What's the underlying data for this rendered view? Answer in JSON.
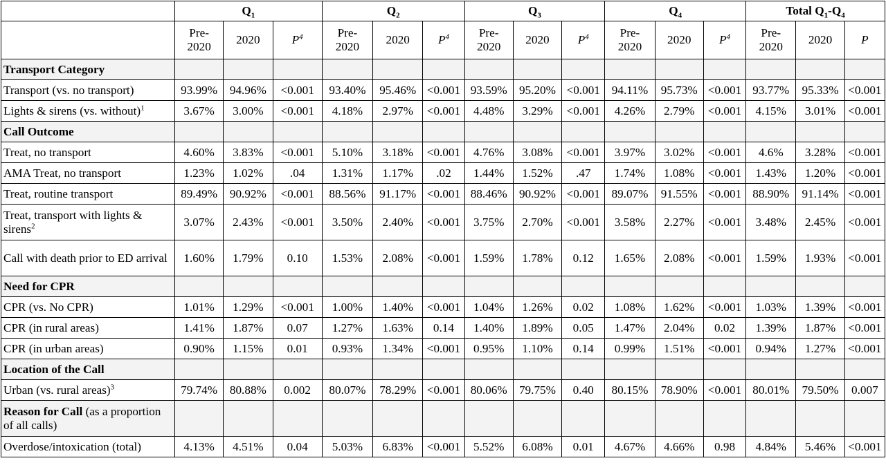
{
  "header": {
    "quarters": [
      {
        "label": "Q",
        "sub": "1"
      },
      {
        "label": "Q",
        "sub": "2"
      },
      {
        "label": "Q",
        "sub": "3"
      },
      {
        "label": "Q",
        "sub": "4"
      }
    ],
    "total": {
      "prefix": "Total Q",
      "sub1": "1",
      "mid": "-Q",
      "sub2": "4"
    },
    "pre_line1": "Pre-",
    "pre_line2": "2020",
    "col_2020": "2020",
    "p_label": "P",
    "p_sup": "4",
    "total_p_label": "P"
  },
  "rows": [
    {
      "type": "section",
      "label": "Transport Category"
    },
    {
      "type": "data",
      "label": "Transport (vs. no transport)",
      "values": [
        "93.99%",
        "94.96%",
        "<0.001",
        "93.40%",
        "95.46%",
        "<0.001",
        "93.59%",
        "95.20%",
        "<0.001",
        "94.11%",
        "95.73%",
        "<0.001",
        "93.77%",
        "95.33%",
        "<0.001"
      ]
    },
    {
      "type": "data",
      "label": "Lights & sirens (vs. without)",
      "sup": "1",
      "values": [
        "3.67%",
        "3.00%",
        "<0.001",
        "4.18%",
        "2.97%",
        "<0.001",
        "4.48%",
        "3.29%",
        "<0.001",
        "4.26%",
        "2.79%",
        "<0.001",
        "4.15%",
        "3.01%",
        "<0.001"
      ]
    },
    {
      "type": "section",
      "label": "Call Outcome"
    },
    {
      "type": "data",
      "label": "Treat, no transport",
      "values": [
        "4.60%",
        "3.83%",
        "<0.001",
        "5.10%",
        "3.18%",
        "<0.001",
        "4.76%",
        "3.08%",
        "<0.001",
        "3.97%",
        "3.02%",
        "<0.001",
        "4.6%",
        "3.28%",
        "<0.001"
      ]
    },
    {
      "type": "data",
      "label": "AMA Treat, no transport",
      "values": [
        "1.23%",
        "1.02%",
        ".04",
        "1.31%",
        "1.17%",
        ".02",
        "1.44%",
        "1.52%",
        ".47",
        "1.74%",
        "1.08%",
        "<0.001",
        "1.43%",
        "1.20%",
        "<0.001"
      ]
    },
    {
      "type": "data",
      "label": "Treat, routine transport",
      "values": [
        "89.49%",
        "90.92%",
        "<0.001",
        "88.56%",
        "91.17%",
        "<0.001",
        "88.46%",
        "90.92%",
        "<0.001",
        "89.07%",
        "91.55%",
        "<0.001",
        "88.90%",
        "91.14%",
        "<0.001"
      ]
    },
    {
      "type": "data",
      "label": "Treat, transport with lights & sirens",
      "sup": "2",
      "tall": true,
      "values": [
        "3.07%",
        "2.43%",
        "<0.001",
        "3.50%",
        "2.40%",
        "<0.001",
        "3.75%",
        "2.70%",
        "<0.001",
        "3.58%",
        "2.27%",
        "<0.001",
        "3.48%",
        "2.45%",
        "<0.001"
      ]
    },
    {
      "type": "data",
      "label": "Call with death prior to ED arrival",
      "tall": true,
      "values": [
        "1.60%",
        "1.79%",
        "0.10",
        "1.53%",
        "2.08%",
        "<0.001",
        "1.59%",
        "1.78%",
        "0.12",
        "1.65%",
        "2.08%",
        "<0.001",
        "1.59%",
        "1.93%",
        "<0.001"
      ]
    },
    {
      "type": "section",
      "label": "Need for CPR"
    },
    {
      "type": "data",
      "label": "CPR (vs. No CPR)",
      "values": [
        "1.01%",
        "1.29%",
        "<0.001",
        "1.00%",
        "1.40%",
        "<0.001",
        "1.04%",
        "1.26%",
        "0.02",
        "1.08%",
        "1.62%",
        "<0.001",
        "1.03%",
        "1.39%",
        "<0.001"
      ]
    },
    {
      "type": "data",
      "label": "CPR (in rural areas)",
      "values": [
        "1.41%",
        "1.87%",
        "0.07",
        "1.27%",
        "1.63%",
        "0.14",
        "1.40%",
        "1.89%",
        "0.05",
        "1.47%",
        "2.04%",
        "0.02",
        "1.39%",
        "1.87%",
        "<0.001"
      ]
    },
    {
      "type": "data",
      "label": "CPR (in urban areas)",
      "values": [
        "0.90%",
        "1.15%",
        "0.01",
        "0.93%",
        "1.34%",
        "<0.001",
        "0.95%",
        "1.10%",
        "0.14",
        "0.99%",
        "1.51%",
        "<0.001",
        "0.94%",
        "1.27%",
        "<0.001"
      ]
    },
    {
      "type": "section",
      "label": "Location of the Call"
    },
    {
      "type": "data",
      "label": "Urban (vs. rural areas)",
      "sup": "3",
      "values": [
        "79.74%",
        "80.88%",
        "0.002",
        "80.07%",
        "78.29%",
        "<0.001",
        "80.06%",
        "79.75%",
        "0.40",
        "80.15%",
        "78.90%",
        "<0.001",
        "80.01%",
        "79.50%",
        "0.007"
      ]
    },
    {
      "type": "section",
      "label": "Reason for Call",
      "note": " (as a proportion of all calls)",
      "tall3": true
    },
    {
      "type": "data",
      "label": "Overdose/intoxication (total)",
      "values": [
        "4.13%",
        "4.51%",
        "0.04",
        "5.03%",
        "6.83%",
        "<0.001",
        "5.52%",
        "6.08%",
        "0.01",
        "4.67%",
        "4.66%",
        "0.98",
        "4.84%",
        "5.46%",
        "<0.001"
      ]
    }
  ]
}
